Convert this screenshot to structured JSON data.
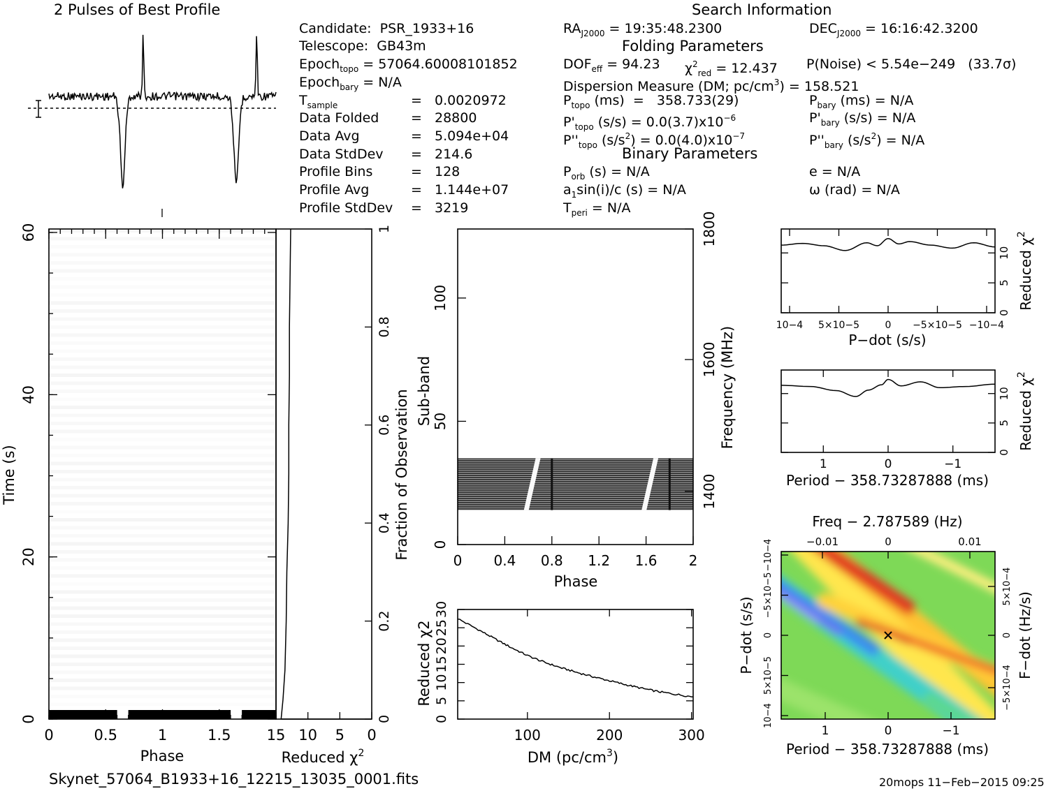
{
  "profile": {
    "title": "2 Pulses of Best Profile"
  },
  "search": {
    "title": "Search Information",
    "folding_title": "Folding Parameters",
    "binary_title": "Binary Parameters",
    "candidate_label": "Candidate:",
    "candidate": "PSR_1933+16",
    "telescope_label": "Telescope:",
    "telescope": "GB43m",
    "epoch_topo_label": "Epoch",
    "epoch_topo_sub": "topo",
    "epoch_topo": " = 57064.60008101852",
    "epoch_bary_label": "Epoch",
    "epoch_bary_sub": "bary",
    "epoch_bary": " = N/A",
    "tsample_label": "T",
    "tsample_sub": "sample",
    "tsample": "0.0020972",
    "data_folded_label": "Data Folded",
    "data_folded": "28800",
    "data_avg_label": "Data Avg",
    "data_avg": "5.094e+04",
    "data_stddev_label": "Data StdDev",
    "data_stddev": "214.6",
    "profile_bins_label": "Profile Bins",
    "profile_bins": "128",
    "profile_avg_label": "Profile Avg",
    "profile_avg": "1.144e+07",
    "profile_stddev_label": "Profile StdDev",
    "profile_stddev": "3219",
    "eq": "=",
    "ra_label": "RA",
    "ra_sub": "J2000",
    "ra": " = 19:35:48.2300",
    "dec_label": "DEC",
    "dec_sub": "J2000",
    "dec": " = 16:16:42.3200",
    "dof_label": "DOF",
    "dof_sub": "eff",
    "dof": " = 94.23",
    "chi_label": "χ",
    "chi_sup": "2",
    "chi_sub": "red",
    "chi": " = 12.437",
    "pnoise": "P(Noise) < 5.54e−249   (33.7σ)",
    "dm_line": "Dispersion Measure (DM; pc/cm",
    "dm_sup": "3",
    "dm_value": ") = 158.521",
    "ptopo_label": "P",
    "ptopo_sub": "topo",
    "ptopo": " (ms)  =   358.733(29)",
    "pdtopo_label": "P'",
    "pdtopo_sub": "topo",
    "pdtopo": " (s/s) = 0.0(3.7)x10",
    "pdtopo_exp": "−6",
    "pddtopo_label": "P''",
    "pddtopo_sub": "topo",
    "pddtopo": " (s/s",
    "pddtopo_sup": "2",
    "pddtopo_tail": ") = 0.0(4.0)x10",
    "pddtopo_exp": "−7",
    "pbary_label": "P",
    "pbary_sub": "bary",
    "pbary": " (ms) = N/A",
    "pdbary_label": "P'",
    "pdbary_sub": "bary",
    "pdbary": " (s/s) = N/A",
    "pddbary_label": "P''",
    "pddbary_sub": "bary",
    "pddbary": " (s/s",
    "pddbary_sup": "2",
    "pddbary_tail": ") = N/A",
    "porb_label": "P",
    "porb_sub": "orb",
    "porb": " (s) = N/A",
    "a1_label": "a",
    "a1_sub": "1",
    "a1": "sin(i)/c (s) = N/A",
    "tperi_label": "T",
    "tperi_sub": "peri",
    "tperi": " = N/A",
    "ecc": "e = N/A",
    "omega": "ω (rad) = N/A"
  },
  "footer": {
    "filename": "Skynet_57064_B1933+16_12215_13035_0001.fits",
    "stamp": "20mops 11−Feb−2015 09:25"
  },
  "chart_data": [
    {
      "type": "line",
      "panel": "profile",
      "title": "2 Pulses of Best Profile",
      "x_range": [
        0,
        2
      ],
      "features": {
        "dip_phase": [
          0.65,
          1.65
        ],
        "spike_phase": [
          0.83,
          1.83
        ]
      }
    },
    {
      "type": "heatmap",
      "panel": "time-phase",
      "xlabel": "Phase",
      "ylabel": "Time (s)",
      "xticks": [
        "0",
        "0.5",
        "1",
        "1.5"
      ],
      "yticks": [
        "0",
        "20",
        "40",
        "60"
      ],
      "xlim": [
        0,
        2
      ],
      "ylim": [
        0,
        60
      ]
    },
    {
      "type": "line",
      "panel": "time-chi2",
      "xlabel": "Reduced χ2",
      "ylabel": "Fraction of Observation",
      "xticks": [
        "15",
        "10",
        "5",
        "0"
      ],
      "yticks": [
        "0",
        "0.2",
        "0.4",
        "0.6",
        "0.8",
        "1"
      ],
      "xlim": [
        15,
        0
      ],
      "ylim": [
        0,
        1
      ],
      "points": [
        [
          14.2,
          0.0
        ],
        [
          13.9,
          0.04
        ],
        [
          13.6,
          0.1
        ],
        [
          13.4,
          0.2
        ],
        [
          13.3,
          0.3
        ],
        [
          13.1,
          0.4
        ],
        [
          13.0,
          0.5
        ],
        [
          13.0,
          0.6
        ],
        [
          12.9,
          0.7
        ],
        [
          12.9,
          0.8
        ],
        [
          12.8,
          0.9
        ],
        [
          12.7,
          1.0
        ]
      ]
    },
    {
      "type": "heatmap",
      "panel": "subband-phase",
      "xlabel": "Phase",
      "ylabel": "Sub-band",
      "y2label": "Frequency (MHz)",
      "xticks": [
        "0",
        "0.4",
        "0.8",
        "1.2",
        "1.6",
        "2"
      ],
      "yticks": [
        "0",
        "50",
        "100"
      ],
      "y2ticks": [
        "1400",
        "1600",
        "1800"
      ],
      "xlim": [
        0,
        2
      ],
      "ylim": [
        0,
        128
      ],
      "band_range": [
        14,
        35
      ]
    },
    {
      "type": "line",
      "panel": "dm-chi2",
      "xlabel": "DM (pc/cm3)",
      "ylabel": "Reduced χ2",
      "xticks": [
        "100",
        "200",
        "300"
      ],
      "yticks": [
        "0",
        "5",
        "10",
        "15",
        "20",
        "25",
        "30"
      ],
      "xlim": [
        15,
        302
      ],
      "ylim": [
        0,
        30
      ],
      "x": [
        15,
        40,
        60,
        80,
        100,
        120,
        140,
        160,
        180,
        200,
        220,
        240,
        260,
        280,
        302
      ],
      "y": [
        27.5,
        24.5,
        22.0,
        19.6,
        17.4,
        15.6,
        14.1,
        12.8,
        11.6,
        10.5,
        9.4,
        8.4,
        7.5,
        6.8,
        6.1
      ]
    },
    {
      "type": "line",
      "panel": "pdot-chi2",
      "xlabel": "P−dot (s/s)",
      "ylabel": "Reduced χ2",
      "xticks": [
        "10−4",
        "5×10−5",
        "0",
        "−5×10−5",
        "−10−4"
      ],
      "yticks": [
        "0",
        "5",
        "10"
      ],
      "xlim": [
        0.0001,
        -0.0001
      ],
      "ylim": [
        0,
        14
      ],
      "x": [
        0.0001,
        8e-05,
        6e-05,
        4e-05,
        2e-05,
        1e-05,
        0.0,
        -1e-05,
        -2e-05,
        -4e-05,
        -6e-05,
        -8e-05,
        -0.0001
      ],
      "y": [
        11.3,
        11.6,
        11.2,
        10.4,
        11.7,
        11.2,
        12.4,
        11.5,
        11.9,
        11.3,
        10.8,
        11.7,
        11.0
      ]
    },
    {
      "type": "line",
      "panel": "period-chi2",
      "xlabel": "Period − 358.73287888 (ms)",
      "ylabel": "Reduced χ2",
      "xticks": [
        "1",
        "0",
        "−1"
      ],
      "yticks": [
        "0",
        "5",
        "10"
      ],
      "xlim": [
        1.65,
        -1.65
      ],
      "ylim": [
        0,
        14
      ],
      "x": [
        1.65,
        1.2,
        0.8,
        0.5,
        0.3,
        0.1,
        0.0,
        -0.2,
        -0.5,
        -0.8,
        -1.2,
        -1.65
      ],
      "y": [
        11.4,
        11.2,
        10.5,
        9.5,
        10.6,
        11.5,
        12.4,
        11.3,
        12.0,
        11.0,
        11.2,
        11.6
      ]
    },
    {
      "type": "heatmap",
      "panel": "period-pdot",
      "title": "Freq − 2.787589 (Hz)",
      "xlabel": "Period − 358.73287888 (ms)",
      "ylabel": "P−dot (s/s)",
      "y2label": "F−dot (Hz/s)",
      "xticks": [
        "1",
        "0",
        "−1"
      ],
      "x2ticks": [
        "−0.01",
        "0",
        "0.01"
      ],
      "yticks": [
        "10−4",
        "5×10−5",
        "0",
        "−5×10−5",
        "−10−4"
      ],
      "y2ticks": [
        "−5×10−4",
        "0",
        "5×10−4"
      ],
      "peak": [
        0,
        0
      ]
    }
  ]
}
